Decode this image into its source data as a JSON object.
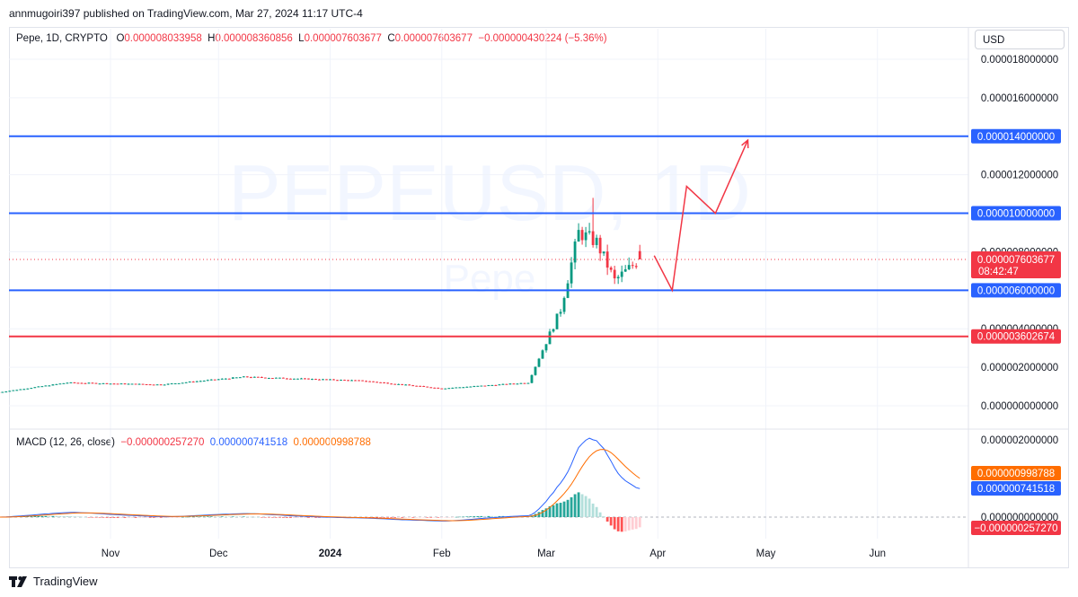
{
  "header": {
    "published_by": "annmugoiri397 published on TradingView.com, Mar 27, 2024 11:17 UTC-4"
  },
  "legend": {
    "symbol": "Pepe, 1D, CRYPTO",
    "o_label": "O",
    "o_value": "0.000008033958",
    "h_label": "H",
    "h_value": "0.000008360856",
    "l_label": "L",
    "l_value": "0.000007603677",
    "c_label": "C",
    "c_value": "0.000007603677",
    "change": "−0.000000430224 (−5.36%)"
  },
  "currency_button": "USD",
  "watermark": {
    "symbol": "PEPEUSD, 1D",
    "name": "Pepe"
  },
  "footer": {
    "brand": "TradingView"
  },
  "colors": {
    "up": "#089981",
    "down": "#f23645",
    "level_line": "#2962ff",
    "support_red": "#f23645",
    "macd_line": "#2962ff",
    "signal_line": "#ff6d00",
    "projection": "#f23645"
  },
  "chart_data": [
    {
      "type": "candlestick",
      "title": "Pepe, 1D, CRYPTO",
      "y_axis": {
        "ticks": [
          "0.000000000000",
          "0.000002000000",
          "0.000004000000",
          "0.000006000000",
          "0.000008000000",
          "0.000010000000",
          "0.000012000000",
          "0.000014000000",
          "0.000016000000",
          "0.000018000000"
        ],
        "ylim": [
          0,
          1.85e-05
        ]
      },
      "x_axis": {
        "tick_labels": [
          "Nov",
          "Dec",
          "2024",
          "Feb",
          "Mar",
          "Apr",
          "May",
          "Jun"
        ]
      },
      "close_series_key_points": [
        {
          "date": "2023-10-01",
          "close": 7e-07
        },
        {
          "date": "2023-10-20",
          "close": 1.2e-06
        },
        {
          "date": "2023-11-15",
          "close": 1.1e-06
        },
        {
          "date": "2023-12-08",
          "close": 1.5e-06
        },
        {
          "date": "2024-01-10",
          "close": 1.3e-06
        },
        {
          "date": "2024-02-01",
          "close": 9e-07
        },
        {
          "date": "2024-02-25",
          "close": 1.2e-06
        },
        {
          "date": "2024-03-05",
          "close": 5e-06
        },
        {
          "date": "2024-03-10",
          "close": 9e-06
        },
        {
          "date": "2024-03-15",
          "close": 8.5e-06
        },
        {
          "date": "2024-03-20",
          "close": 6.5e-06
        },
        {
          "date": "2024-03-27",
          "close": 7.6e-06
        }
      ],
      "horizontal_levels": [
        {
          "value": "0.000014000000",
          "color": "#2962ff"
        },
        {
          "value": "0.000010000000",
          "color": "#2962ff"
        },
        {
          "value": "0.000006000000",
          "color": "#2962ff"
        },
        {
          "value": "0.000003602674",
          "color": "#f23645"
        }
      ],
      "last_price": {
        "value": "0.000007603677",
        "countdown": "08:42:47"
      },
      "projection_path_points": [
        {
          "date": "2024-03-31",
          "price": 7.8e-06
        },
        {
          "date": "2024-04-05",
          "price": 6e-06
        },
        {
          "date": "2024-04-09",
          "price": 1.14e-05
        },
        {
          "date": "2024-04-17",
          "price": 1e-05
        },
        {
          "date": "2024-04-26",
          "price": 1.38e-05
        }
      ]
    },
    {
      "type": "line",
      "title": "MACD (12, 26, close)",
      "values_label": {
        "histogram": "−0.000000257270",
        "macd": "0.000000741518",
        "signal": "0.000000998788"
      },
      "y_axis": {
        "ticks": [
          "0.000000000000",
          "0.000002000000"
        ]
      },
      "tags": [
        {
          "value": "0.000000998788",
          "color": "#ff6d00"
        },
        {
          "value": "0.000000741518",
          "color": "#2962ff"
        },
        {
          "value": "−0.000000257270",
          "color": "#f23645"
        }
      ]
    }
  ]
}
